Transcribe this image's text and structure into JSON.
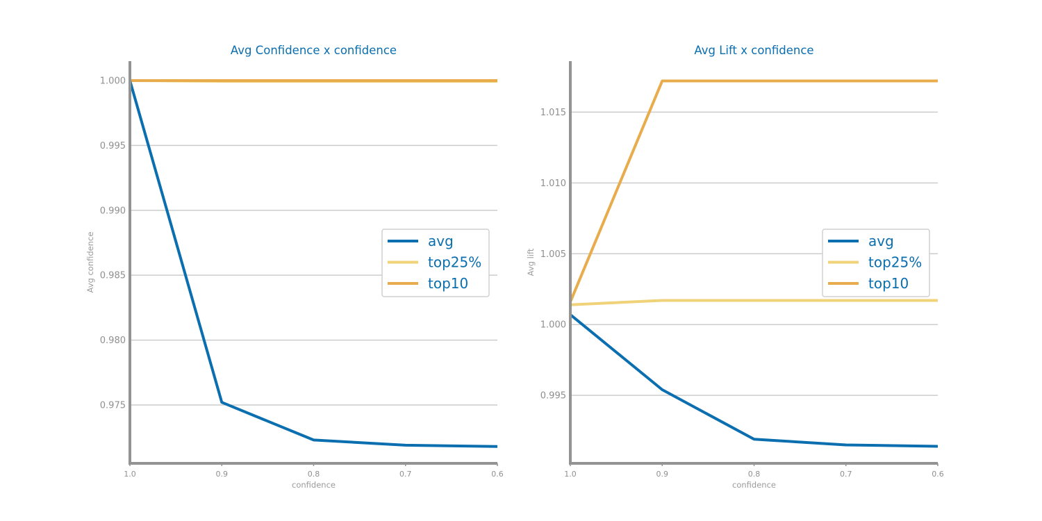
{
  "colors": {
    "avg": "#0a6eaf",
    "top25%": "#f0d278",
    "top10": "#e8ac4c",
    "axis": "#939393",
    "grid": "#cccccc",
    "title": "#0a6eaf"
  },
  "chart_data": [
    {
      "type": "line",
      "title": "Avg Confidence x confidence",
      "xlabel": "confidence",
      "ylabel": "Avg confidence",
      "x": [
        1.0,
        0.9,
        0.8,
        0.7,
        0.6
      ],
      "x_tick_labels": [
        "1.0",
        "0.9",
        "0.8",
        "0.7",
        "0.6"
      ],
      "x_reversed": true,
      "ylim": [
        0.9705,
        1.0015
      ],
      "y_ticks": [
        0.975,
        0.98,
        0.985,
        0.99,
        0.995,
        1.0
      ],
      "y_tick_labels": [
        "0.975",
        "0.980",
        "0.985",
        "0.990",
        "0.995",
        "1.000"
      ],
      "grid": true,
      "legend": "center-right",
      "series": [
        {
          "name": "avg",
          "values": [
            1.0,
            0.9752,
            0.9723,
            0.9719,
            0.9718
          ]
        },
        {
          "name": "top25%",
          "values": [
            1.0,
            0.99995,
            0.99995,
            0.99995,
            0.99995
          ]
        },
        {
          "name": "top10",
          "values": [
            1.0,
            1.0,
            1.0,
            1.0,
            1.0
          ]
        }
      ]
    },
    {
      "type": "line",
      "title": "Avg Lift x confidence",
      "xlabel": "confidence",
      "ylabel": "Avg lift",
      "x": [
        1.0,
        0.9,
        0.8,
        0.7,
        0.6
      ],
      "x_tick_labels": [
        "1.0",
        "0.9",
        "0.8",
        "0.7",
        "0.6"
      ],
      "x_reversed": true,
      "ylim": [
        0.9902,
        1.0186
      ],
      "y_ticks": [
        0.995,
        1.0,
        1.005,
        1.01,
        1.015
      ],
      "y_tick_labels": [
        "0.995",
        "1.000",
        "1.005",
        "1.010",
        "1.015"
      ],
      "grid": true,
      "legend": "center-right",
      "series": [
        {
          "name": "avg",
          "values": [
            1.0007,
            0.9954,
            0.9919,
            0.9915,
            0.9914
          ]
        },
        {
          "name": "top25%",
          "values": [
            1.0014,
            1.0017,
            1.0017,
            1.0017,
            1.0017
          ]
        },
        {
          "name": "top10",
          "values": [
            1.0016,
            1.0172,
            1.0172,
            1.0172,
            1.0172
          ]
        }
      ]
    }
  ]
}
